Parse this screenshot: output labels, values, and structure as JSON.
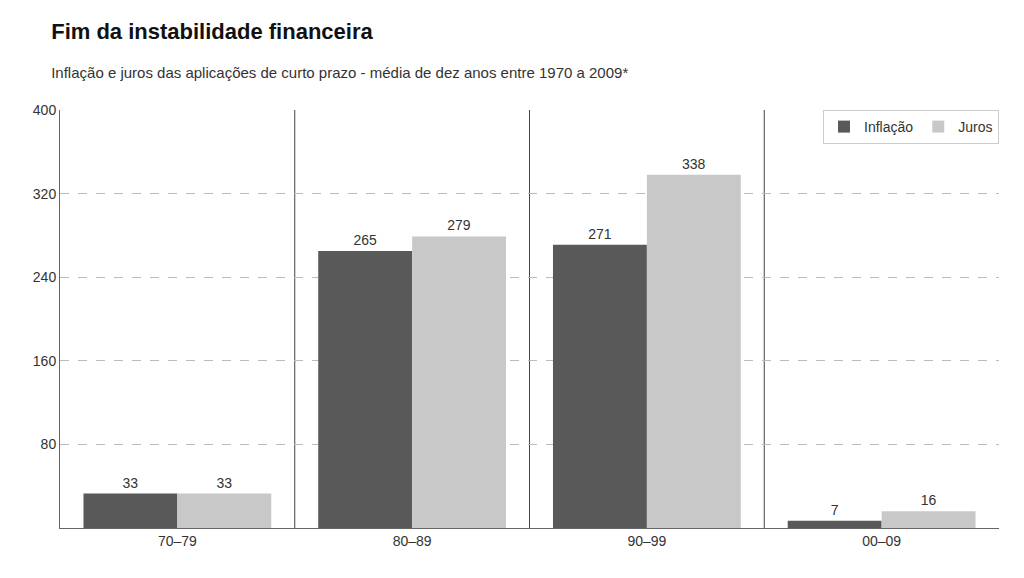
{
  "chart_data": {
    "type": "bar",
    "title": "Fim da instabilidade financeira",
    "subtitle": "Inflação e juros das aplicações de curto prazo - média de dez anos entre 1970 a 2009*",
    "categories": [
      "70–79",
      "80–89",
      "90–99",
      "00–09"
    ],
    "series": [
      {
        "name": "Inflação",
        "color": "#595959",
        "values": [
          33,
          265,
          271,
          7
        ]
      },
      {
        "name": "Juros",
        "color": "#c8c8c8",
        "values": [
          33,
          279,
          338,
          16
        ]
      }
    ],
    "ylim": [
      0,
      400
    ],
    "yticks": [
      80,
      160,
      240,
      320,
      400
    ],
    "grid": true,
    "legend": "upper right",
    "data_labels": true
  }
}
